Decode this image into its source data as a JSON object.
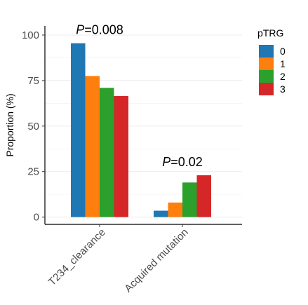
{
  "chart_data": {
    "type": "bar",
    "categories": [
      "T234_clearance",
      "Acquired mutation"
    ],
    "series": [
      {
        "name": "0",
        "values": [
          95.5,
          3.5
        ],
        "color": "#1f77b4"
      },
      {
        "name": "1",
        "values": [
          77.5,
          8.0
        ],
        "color": "#ff7f0e"
      },
      {
        "name": "2",
        "values": [
          71.0,
          19.0
        ],
        "color": "#2ca02c"
      },
      {
        "name": "3",
        "values": [
          66.5,
          23.0
        ],
        "color": "#d62728"
      }
    ],
    "ylabel": "Proportion  (%)",
    "ylim": [
      -4,
      105
    ],
    "yticks": [
      0,
      25,
      50,
      75,
      100
    ],
    "grid": true,
    "legend": {
      "title": "pTRG",
      "placement": "right"
    },
    "annotations": [
      {
        "category": "T234_clearance",
        "italic": "P",
        "text": "=0.008"
      },
      {
        "category": "Acquired mutation",
        "italic": "P",
        "text": "=0.02"
      }
    ]
  }
}
